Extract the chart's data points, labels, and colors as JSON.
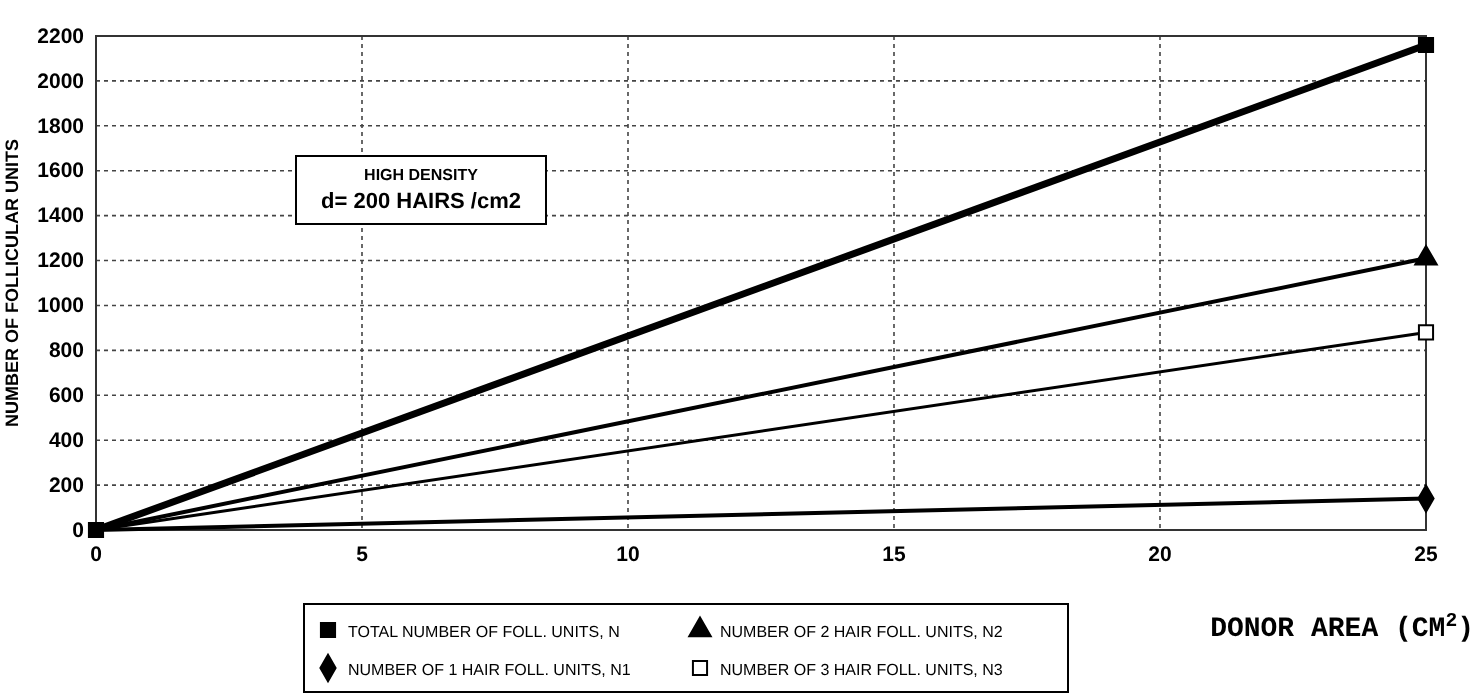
{
  "chart_data": {
    "type": "line",
    "xlabel": "DONOR AREA  (CM$^{2}$)",
    "ylabel": "NUMBER OF FOLLICULAR UNITS",
    "x": [
      0,
      25
    ],
    "series": [
      {
        "name": "TOTAL NUMBER OF FOLL. UNITS, N",
        "color": "#000000",
        "values": [
          0,
          2160
        ],
        "marker": "square"
      },
      {
        "name": "NUMBER OF 1 HAIR FOLL. UNITS, N1",
        "color": "#000000",
        "values": [
          0,
          140
        ],
        "marker": "diamond"
      },
      {
        "name": "NUMBER OF 2 HAIR FOLL. UNITS, N2",
        "color": "#000000",
        "values": [
          0,
          1210
        ],
        "marker": "triangle"
      },
      {
        "name": "NUMBER OF 3 HAIR FOLL. UNITS, N3",
        "color": "#000000",
        "values": [
          0,
          880
        ],
        "marker": "square"
      }
    ],
    "xlim": [
      0,
      25
    ],
    "xticks": [
      0,
      5,
      10,
      15,
      20,
      25
    ],
    "ylim": [
      0,
      2200
    ],
    "yticks": [
      0,
      200,
      400,
      600,
      800,
      1000,
      1200,
      1400,
      1600,
      1800,
      2000,
      2200
    ],
    "grid": true,
    "legend": "bottom",
    "line_style": "solid",
    "annotations": [
      "HIGH DENSITY",
      "d= 200 HAIRS /cm2"
    ]
  }
}
